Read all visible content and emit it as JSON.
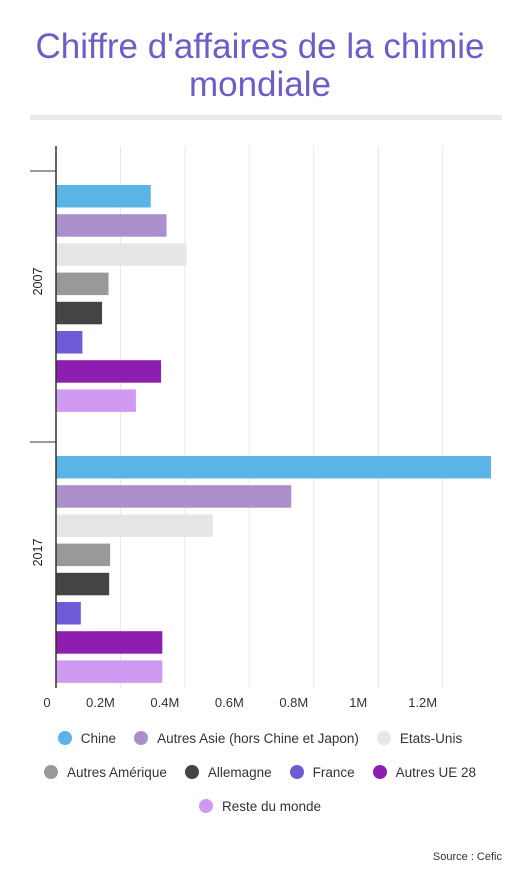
{
  "header": {
    "title": "Chiffre d'affaires de la chimie mondiale"
  },
  "footer": {
    "source": "Source : Cefic"
  },
  "chart_data": {
    "type": "bar",
    "orientation": "horizontal",
    "categories": [
      "2007",
      "2017"
    ],
    "series": [
      {
        "name": "Chine",
        "color": "#5ab4e5",
        "values": [
          294,
          1350
        ]
      },
      {
        "name": "Autres Asie (hors Chine et Japon)",
        "color": "#ab8fcb",
        "values": [
          343,
          730
        ]
      },
      {
        "name": "Etats-Unis",
        "color": "#e6e6e6",
        "values": [
          405,
          487
        ]
      },
      {
        "name": "Autres Amérique",
        "color": "#999999",
        "values": [
          163,
          168
        ]
      },
      {
        "name": "Allemagne",
        "color": "#444444",
        "values": [
          143,
          165
        ]
      },
      {
        "name": "France",
        "color": "#6f5bd6",
        "values": [
          82,
          77
        ]
      },
      {
        "name": "Autres UE 28",
        "color": "#8e1eb0",
        "values": [
          326,
          330
        ]
      },
      {
        "name": "Reste du monde",
        "color": "#d09af2",
        "values": [
          248,
          330
        ]
      }
    ],
    "xticks": [
      "0",
      "0.2M",
      "0.4M",
      "0.6M",
      "0.8M",
      "1M",
      "1.2M"
    ],
    "xtick_values": [
      0,
      200,
      400,
      600,
      800,
      1000,
      1200
    ],
    "xlim": [
      0,
      1350
    ],
    "xlabel": "",
    "ylabel": "",
    "grid": true,
    "legend_position": "bottom"
  }
}
